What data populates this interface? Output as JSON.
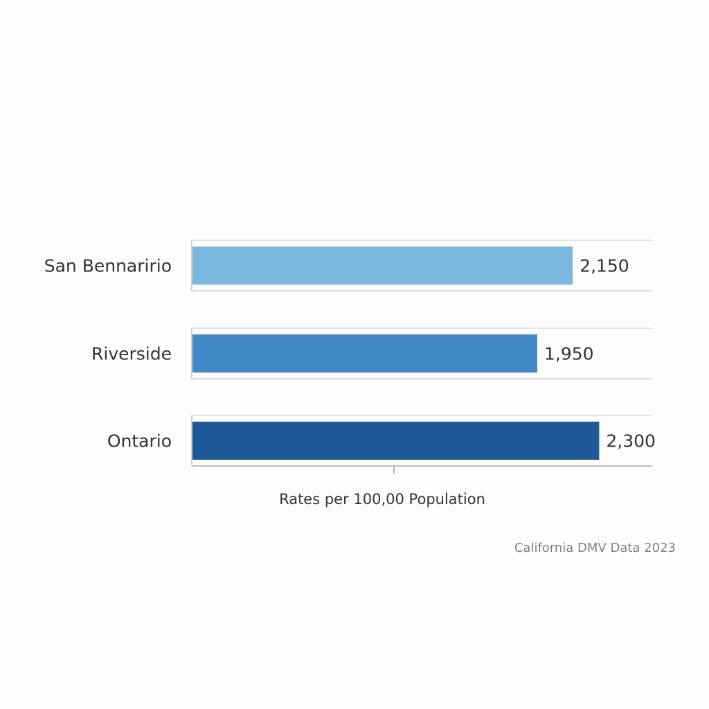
{
  "chart_data": {
    "type": "bar",
    "orientation": "horizontal",
    "categories": [
      "San Bennaririo",
      "Riverside",
      "Ontario"
    ],
    "values": [
      2150,
      1950,
      2300
    ],
    "value_labels": [
      "2,150",
      "1,950",
      "2,300"
    ],
    "colors": [
      "#7ab8e0",
      "#4189c7",
      "#1e5a98"
    ],
    "title": "",
    "xlabel": "Rates per 100,00 Population",
    "ylabel": "",
    "xlim": [
      0,
      2600
    ],
    "grid": false,
    "legend": "none",
    "source": "California DMV Data 2023"
  }
}
